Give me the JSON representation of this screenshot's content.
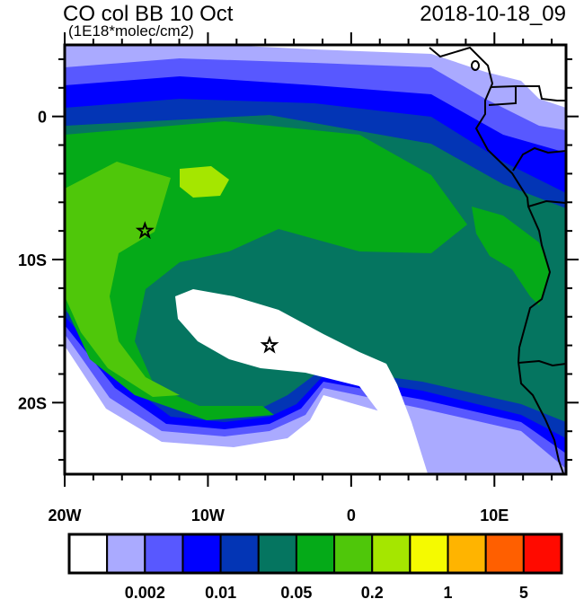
{
  "header": {
    "title": "CO col BB 10 Oct",
    "units": "(1E18*molec/cm2)",
    "datetime": "2018-10-18_09"
  },
  "map": {
    "lon_range": [
      -20,
      15
    ],
    "lat_range": [
      -25,
      5
    ],
    "lon_labels": [
      {
        "lon": -20,
        "text": "20W"
      },
      {
        "lon": -10,
        "text": "10W"
      },
      {
        "lon": 0,
        "text": "0"
      },
      {
        "lon": 10,
        "text": "10E"
      }
    ],
    "lat_labels": [
      {
        "lat": 0,
        "text": "0"
      },
      {
        "lat": -10,
        "text": "10S"
      },
      {
        "lat": -20,
        "text": "20S"
      }
    ],
    "markers": [
      {
        "type": "star-icon",
        "lon": -14.4,
        "lat": -8
      },
      {
        "type": "star-icon",
        "lon": -5.7,
        "lat": -16
      }
    ]
  },
  "colorbar": {
    "colors": [
      "#ffffff",
      "#aaaaff",
      "#5858ff",
      "#0000ff",
      "#0335b5",
      "#057560",
      "#05aa18",
      "#4fc70a",
      "#a5e600",
      "#f5fa00",
      "#ffb400",
      "#ff5f00",
      "#ff0a00"
    ],
    "labels": [
      {
        "boundary": 2,
        "text": "0.002"
      },
      {
        "boundary": 4,
        "text": "0.01"
      },
      {
        "boundary": 6,
        "text": "0.05"
      },
      {
        "boundary": 8,
        "text": "0.2"
      },
      {
        "boundary": 10,
        "text": "1"
      },
      {
        "boundary": 12,
        "text": "5"
      }
    ]
  }
}
